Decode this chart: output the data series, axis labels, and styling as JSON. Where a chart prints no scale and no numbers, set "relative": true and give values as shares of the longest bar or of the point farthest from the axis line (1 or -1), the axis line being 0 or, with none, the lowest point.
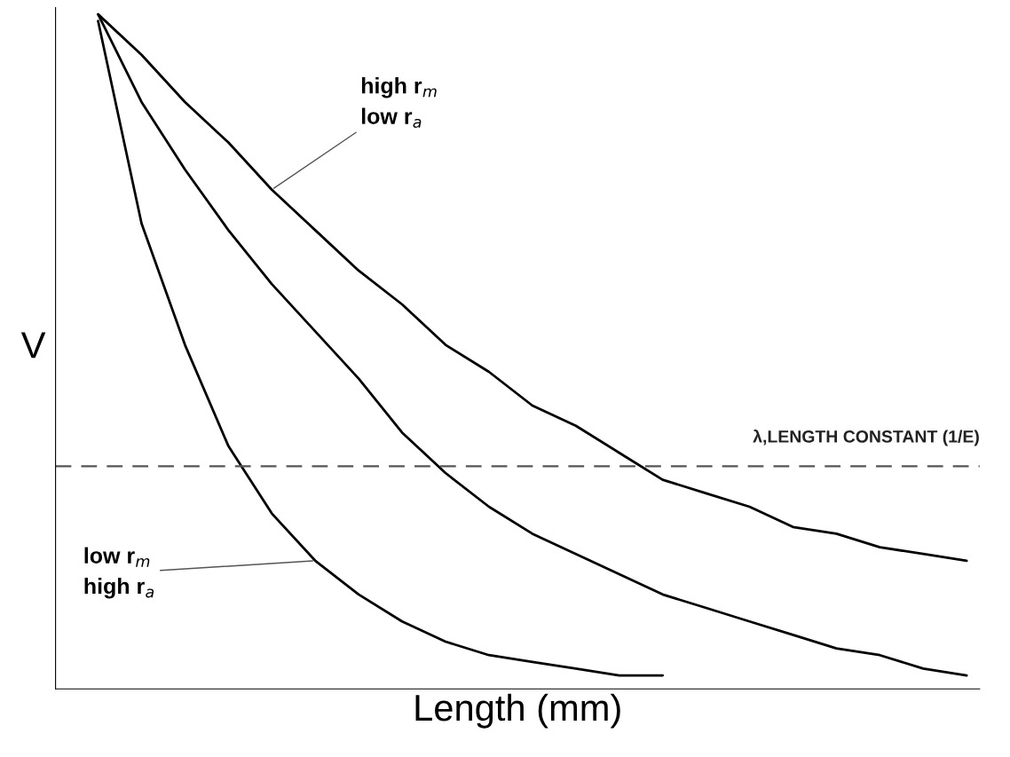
{
  "chart_data": {
    "type": "line",
    "relative": true,
    "xlabel": "Length (mm)",
    "ylabel": "V",
    "tick_labels": false,
    "categories": [
      null,
      null,
      null,
      null,
      null,
      null,
      null,
      null,
      null,
      null,
      null,
      null,
      null,
      null,
      null,
      null,
      null,
      null,
      null,
      null,
      null
    ],
    "series": [
      {
        "color": "#000000",
        "values": [
          0.99,
          0.69,
          0.51,
          0.36,
          0.26,
          0.19,
          0.14,
          0.1,
          0.07,
          0.05,
          0.04,
          0.03,
          0.02,
          0.02,
          null,
          null,
          null,
          null,
          null,
          null,
          null
        ]
      },
      {
        "color": "#000000",
        "values": [
          1.0,
          0.87,
          0.77,
          0.68,
          0.6,
          0.53,
          0.46,
          0.38,
          0.32,
          0.27,
          0.23,
          0.2,
          0.17,
          0.14,
          0.12,
          0.1,
          0.08,
          0.06,
          0.05,
          0.03,
          0.02
        ]
      },
      {
        "color": "#000000",
        "values": [
          1.0,
          0.94,
          0.87,
          0.81,
          0.74,
          0.68,
          0.62,
          0.57,
          0.51,
          0.47,
          0.42,
          0.39,
          0.35,
          0.31,
          0.29,
          0.27,
          0.24,
          0.23,
          0.21,
          0.2,
          0.19
        ]
      }
    ],
    "ref_lines": [
      {
        "axis": "y",
        "value": 0.33,
        "label": "λ,LENGTH CONSTANT (1/E)",
        "color": "#555555",
        "line_style": "dashed"
      }
    ],
    "annotations": [
      "high r$_{m}$\nlow r$_{a}$",
      "low r$_{m}$\nhigh r$_{a}$"
    ]
  }
}
